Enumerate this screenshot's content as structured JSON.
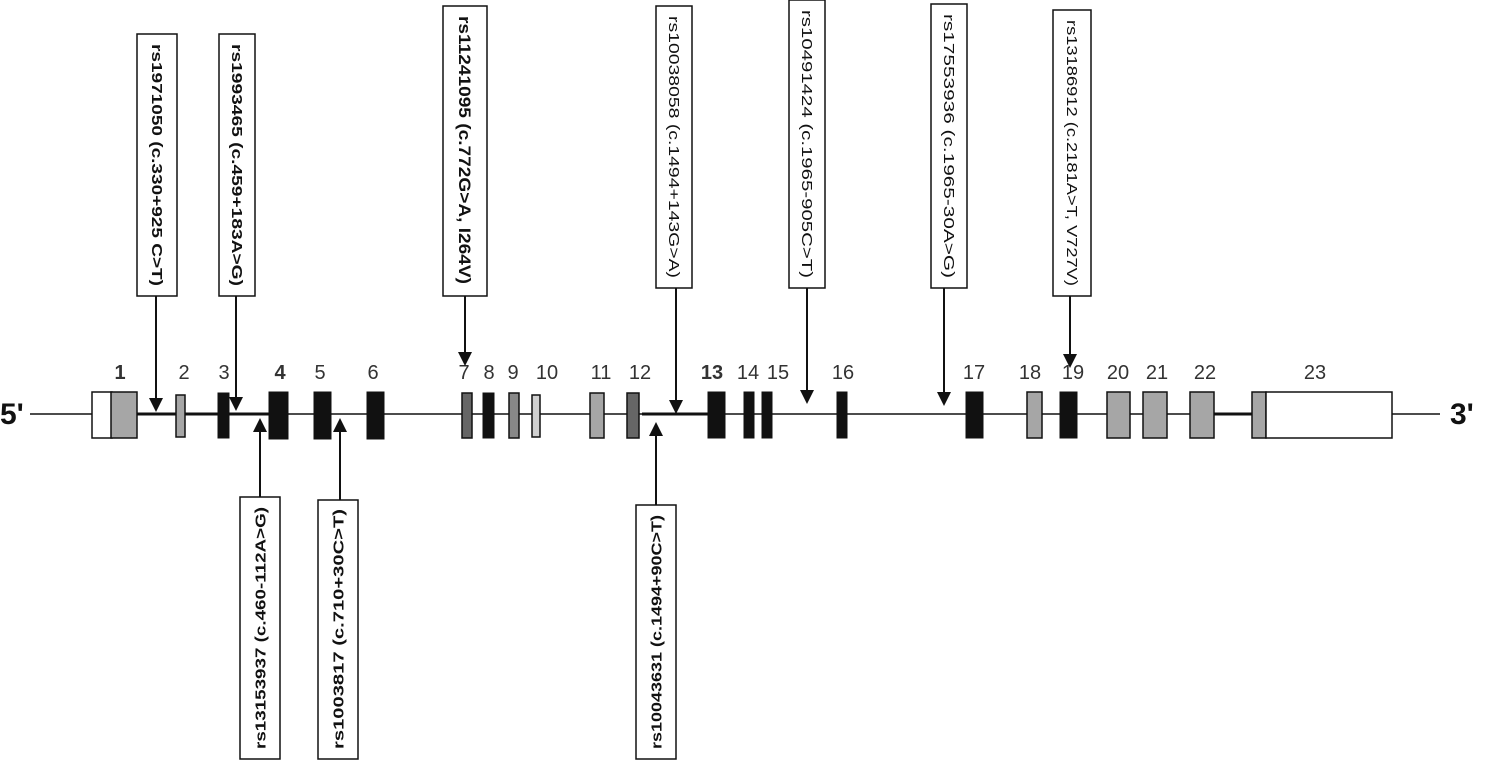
{
  "gene": {
    "five_prime": "5'",
    "three_prime": "3'"
  },
  "exons": [
    {
      "label": "1"
    },
    {
      "label": "2"
    },
    {
      "label": "3"
    },
    {
      "label": "4"
    },
    {
      "label": "5"
    },
    {
      "label": "6"
    },
    {
      "label": "7"
    },
    {
      "label": "8"
    },
    {
      "label": "9"
    },
    {
      "label": "10"
    },
    {
      "label": "11"
    },
    {
      "label": "12"
    },
    {
      "label": "13"
    },
    {
      "label": "14"
    },
    {
      "label": "15"
    },
    {
      "label": "16"
    },
    {
      "label": "17"
    },
    {
      "label": "18"
    },
    {
      "label": "19"
    },
    {
      "label": "20"
    },
    {
      "label": "21"
    },
    {
      "label": "22"
    },
    {
      "label": "23"
    }
  ],
  "snps_top": [
    {
      "label": "rs1971050 (c.330+925 C>T)"
    },
    {
      "label": "rs1993465 (c.459+183A>G)"
    },
    {
      "label": "rs11241095 (c.772G>A, I264V)"
    },
    {
      "label": "rs10038058 (c.1494+143G>A)"
    },
    {
      "label": "rs10491424 (c.1965-905C>T)"
    },
    {
      "label": "rs17553936 (c.1965-30A>G)"
    },
    {
      "label": "rs13186912 (c.2181A>T, V727V)"
    }
  ],
  "snps_bottom": [
    {
      "label": "rs13153937 (c.460-112A>G)"
    },
    {
      "label": "rs1003817 (c.710+30C>T)"
    },
    {
      "label": "rs10043631 (c.1494+90C>T)"
    }
  ]
}
